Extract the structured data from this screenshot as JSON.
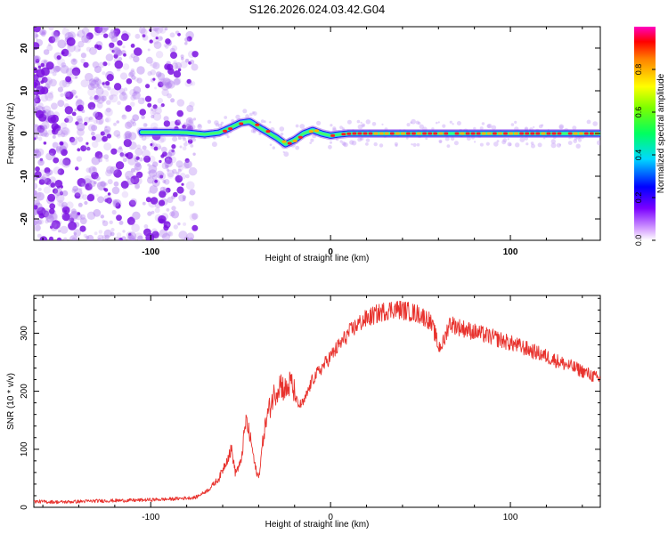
{
  "title": "S126.2026.024.03.42.G04",
  "colors": {
    "snr_line": "#e8322d",
    "axis": "#000000",
    "scatter": "#8a2be2",
    "ridge_core": "#ff2020",
    "ridge_halo": "#20c0ff"
  },
  "chart_data": [
    {
      "type": "heatmap",
      "name": "spectrogram",
      "xlabel": "Height of straight line (km)",
      "ylabel": "Frequency (Hz)",
      "xlim": [
        -165,
        150
      ],
      "ylim": [
        -25,
        25
      ],
      "xticks": [
        -100,
        0,
        100
      ],
      "yticks": [
        -20,
        -10,
        0,
        10,
        20
      ],
      "noise_region_x": [
        -165,
        -75
      ],
      "ridge_start_x": -105,
      "ridge": {
        "x": [
          -105,
          -90,
          -80,
          -70,
          -62,
          -55,
          -50,
          -45,
          -38,
          -30,
          -25,
          -20,
          -15,
          -10,
          -5,
          0,
          5,
          10,
          20,
          40,
          60,
          80,
          100,
          120,
          140,
          150
        ],
        "y": [
          0.3,
          0.3,
          0.2,
          -0.2,
          0.2,
          1.5,
          2.5,
          2.8,
          1.0,
          -1.0,
          -2.5,
          -1.5,
          0.0,
          0.8,
          0.0,
          -0.5,
          -0.2,
          0.0,
          0.0,
          0.0,
          0.0,
          0.0,
          0.0,
          0.0,
          0.0,
          0.0
        ]
      },
      "colorbar": {
        "label": "Normalized spectral amplitude",
        "range": [
          0,
          1
        ],
        "ticks": [
          "0.0",
          "0.2",
          "0.4",
          "0.6",
          "0.8"
        ],
        "tick_values": [
          0,
          0.2,
          0.4,
          0.6,
          0.8
        ]
      }
    },
    {
      "type": "line",
      "name": "snr",
      "xlabel": "Height of straight line (km)",
      "ylabel": "SNR (10 * v/v)",
      "xlim": [
        -165,
        150
      ],
      "ylim": [
        0,
        365
      ],
      "xticks": [
        -100,
        0,
        100
      ],
      "yticks": [
        0,
        100,
        200,
        300
      ],
      "series": [
        {
          "name": "SNR",
          "x": [
            -165,
            -150,
            -130,
            -110,
            -90,
            -75,
            -68,
            -62,
            -58,
            -55,
            -53,
            -50,
            -47,
            -44,
            -42,
            -40,
            -37,
            -35,
            -32,
            -28,
            -25,
            -22,
            -18,
            -15,
            -10,
            -5,
            0,
            5,
            10,
            15,
            20,
            25,
            30,
            35,
            40,
            45,
            50,
            55,
            58,
            60,
            63,
            66,
            70,
            80,
            90,
            100,
            110,
            120,
            130,
            140,
            150
          ],
          "y": [
            10,
            9,
            11,
            12,
            14,
            17,
            30,
            50,
            80,
            100,
            60,
            75,
            150,
            110,
            70,
            50,
            130,
            160,
            190,
            215,
            200,
            215,
            175,
            180,
            220,
            240,
            260,
            280,
            300,
            315,
            325,
            332,
            338,
            342,
            340,
            336,
            332,
            322,
            300,
            275,
            285,
            318,
            312,
            302,
            293,
            283,
            272,
            260,
            247,
            235,
            220
          ]
        }
      ]
    }
  ]
}
